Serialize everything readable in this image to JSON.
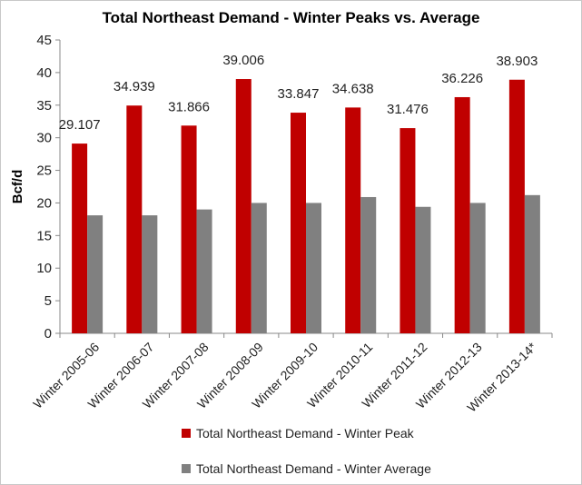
{
  "chart_data": {
    "type": "bar",
    "title": "Total Northeast  Demand - Winter Peaks vs. Average",
    "ylabel": "Bcf/d",
    "xlabel": "",
    "ylim": [
      0,
      45
    ],
    "yticks": [
      0,
      5,
      10,
      15,
      20,
      25,
      30,
      35,
      40,
      45
    ],
    "categories": [
      "Winter 2005-06",
      "Winter 2006-07",
      "Winter 2007-08",
      "Winter 2008-09",
      "Winter 2009-10",
      "Winter 2010-11",
      "Winter 2011-12",
      "Winter 2012-13",
      "Winter 2013-14*"
    ],
    "series": [
      {
        "name": "Total Northeast Demand - Winter Peak",
        "color": "#c00000",
        "values": [
          29.107,
          34.939,
          31.866,
          39.006,
          33.847,
          34.638,
          31.476,
          36.226,
          38.903
        ],
        "labels": [
          "29.107",
          "34.939",
          "31.866",
          "39.006",
          "33.847",
          "34.638",
          "31.476",
          "36.226",
          "38.903"
        ]
      },
      {
        "name": "Total Northeast Demand - Winter Average",
        "color": "#808080",
        "values": [
          18.1,
          18.1,
          19.0,
          20.0,
          20.0,
          20.9,
          19.4,
          20.0,
          21.2
        ]
      }
    ],
    "grid": false,
    "legend": "bottom"
  }
}
